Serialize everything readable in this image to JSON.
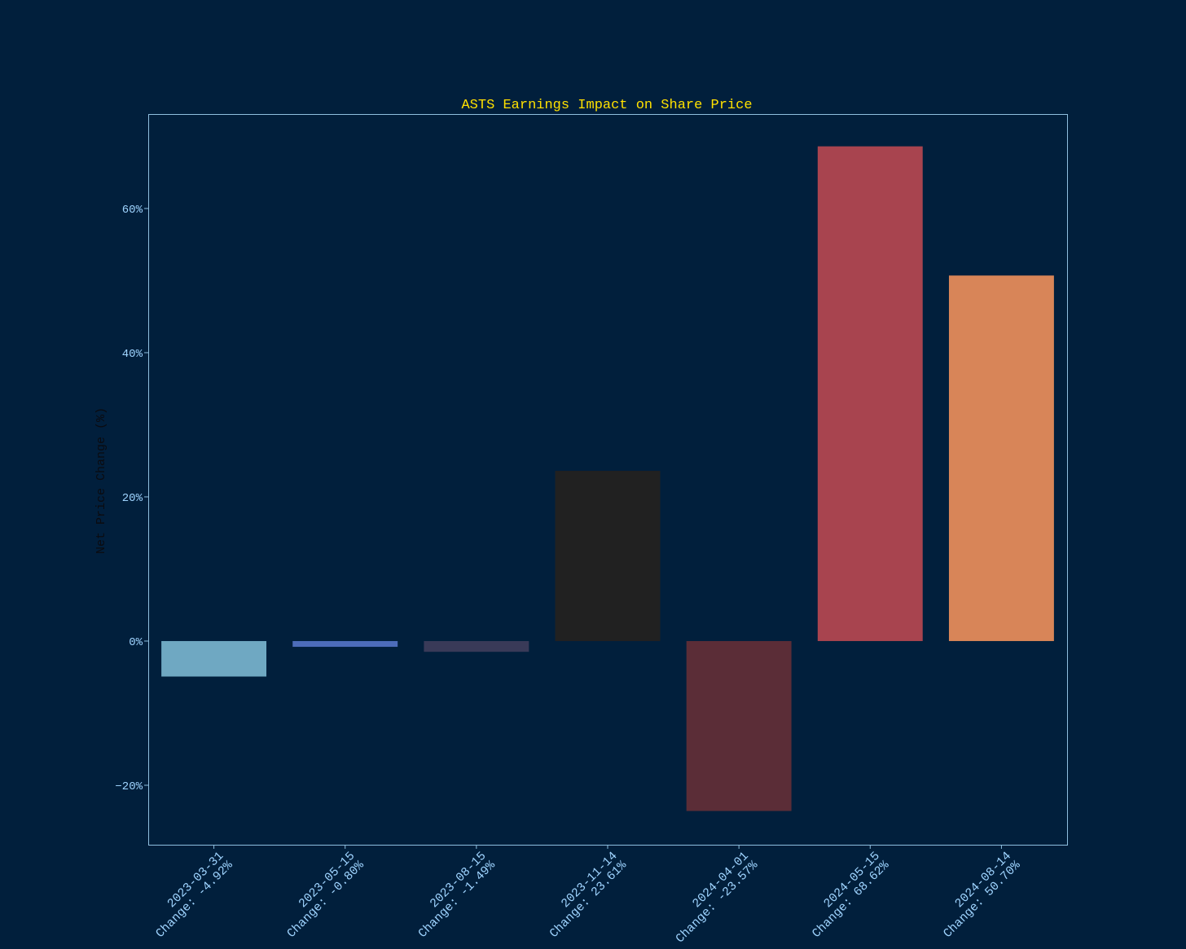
{
  "chart_data": {
    "type": "bar",
    "title": "ASTS Earnings Impact on Share Price",
    "y_label": "Net Price Change (%)",
    "categories": [
      "2023-03-31",
      "2023-05-15",
      "2023-08-15",
      "2023-11-14",
      "2024-04-01",
      "2024-05-15",
      "2024-08-14"
    ],
    "values": [
      -4.92,
      -0.8,
      -1.49,
      23.61,
      -23.57,
      68.62,
      50.7
    ],
    "value_labels": [
      "Change: -4.92%",
      "Change: -0.80%",
      "Change: -1.49%",
      "Change: 23.61%",
      "Change: -23.57%",
      "Change: 68.62%",
      "Change: 50.70%"
    ],
    "colors": [
      "#6fa8c2",
      "#4c6cba",
      "#393a58",
      "#212121",
      "#5b2d37",
      "#a8444f",
      "#d88558"
    ],
    "ylim": [
      -28.25,
      73.1
    ],
    "yticks": [
      {
        "value": -20,
        "label": "−20%"
      },
      {
        "value": 0,
        "label": "0%"
      },
      {
        "value": 20,
        "label": "20%"
      },
      {
        "value": 40,
        "label": "40%"
      },
      {
        "value": 60,
        "label": "60%"
      }
    ]
  }
}
